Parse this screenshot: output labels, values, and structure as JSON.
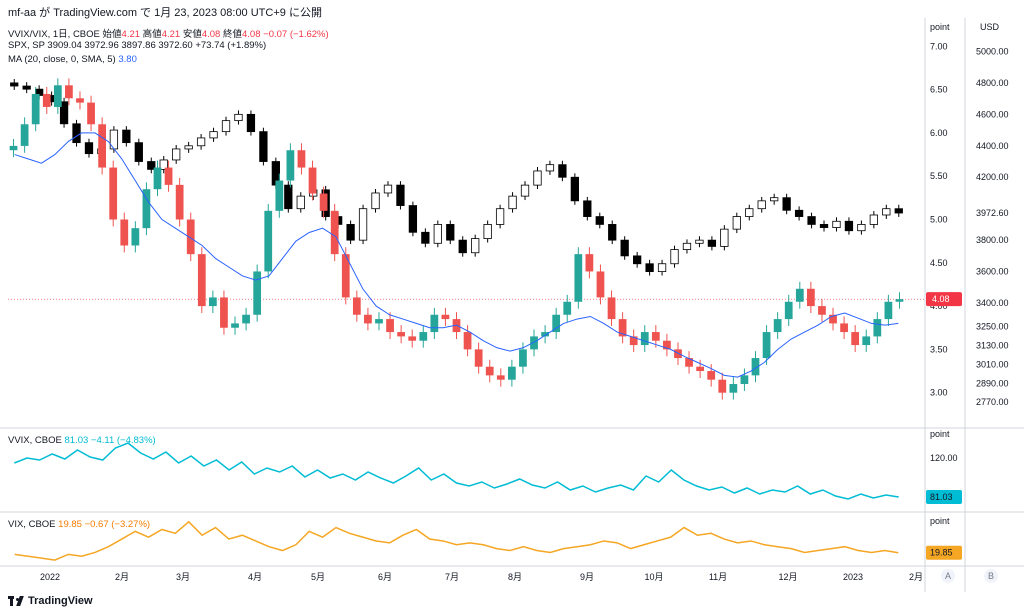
{
  "header": {
    "title": "mf-aa が TradingView.com で 1月 23, 2023 08:00 UTC+9 に公開"
  },
  "footer": {
    "brand": "TradingView"
  },
  "legend_main": {
    "vvix_prefix": "VVIX/VIX, 1日, CBOE",
    "vvix_open_label": "始値",
    "vvix_open": "4.21",
    "vvix_high_label": "高値",
    "vvix_high": "4.21",
    "vvix_low_label": "安値",
    "vvix_low": "4.08",
    "vvix_close_label": "終値",
    "vvix_close": "4.08",
    "vvix_change": "−0.07 (−1.62%)",
    "spx_line": "SPX, SP  3909.04  3972.96  3897.86  3972.60  +73.74 (+1.89%)",
    "ma_prefix": "MA (20, close, 0, SMA, 5)",
    "ma_value": "3.80"
  },
  "legend_vvix": {
    "prefix": "VVIX, CBOE",
    "value": "81.03",
    "change": "−4.11 (−4.83%)"
  },
  "legend_vix": {
    "prefix": "VIX, CBOE",
    "value": "19.85",
    "change": "−0.67 (−3.27%)"
  },
  "colors": {
    "up": "#26a69a",
    "down": "#ef5350",
    "ma": "#2962ff",
    "spx": "#000000",
    "vvix": "#00bcd4",
    "vix": "#f5a623",
    "badge_red": "#f23645"
  },
  "chart_data": [
    {
      "type": "candlestick",
      "title": "VVIX/VIX, 1日, CBOE",
      "axis_label": "point",
      "y_ticks": [
        "7.00",
        "6.50",
        "6.00",
        "5.50",
        "5.00",
        "4.50",
        "4.00",
        "3.50",
        "3.00"
      ],
      "ylim": [
        2.8,
        7.05
      ],
      "x_ticks": [
        "2022",
        "2月",
        "3月",
        "4月",
        "5月",
        "6月",
        "7月",
        "8月",
        "9月",
        "10月",
        "11月",
        "12月",
        "2023",
        "2月"
      ],
      "last_value": "4.08",
      "series": [
        {
          "name": "VVIX/VIX",
          "values": [
            5.85,
            6.1,
            6.45,
            6.3,
            6.55,
            6.4,
            6.35,
            6.1,
            5.6,
            5.0,
            4.7,
            4.9,
            5.35,
            5.6,
            5.4,
            5.0,
            4.6,
            4.0,
            4.1,
            3.75,
            3.8,
            3.9,
            4.4,
            5.1,
            5.45,
            5.8,
            5.6,
            5.3,
            5.1,
            4.6,
            4.1,
            3.9,
            3.8,
            3.85,
            3.7,
            3.65,
            3.6,
            3.7,
            3.9,
            3.85,
            3.7,
            3.5,
            3.3,
            3.2,
            3.15,
            3.3,
            3.5,
            3.65,
            3.7,
            3.9,
            4.05,
            4.6,
            4.4,
            4.1,
            3.85,
            3.65,
            3.55,
            3.7,
            3.6,
            3.5,
            3.4,
            3.3,
            3.25,
            3.15,
            3.0,
            3.1,
            3.2,
            3.4,
            3.7,
            3.85,
            4.05,
            4.2,
            4.0,
            3.9,
            3.8,
            3.7,
            3.55,
            3.65,
            3.85,
            4.05,
            4.08
          ]
        },
        {
          "name": "MA (20, close, 0, SMA, 5)",
          "values": [
            5.75,
            5.7,
            5.65,
            5.75,
            5.9,
            6.0,
            6.0,
            5.9,
            5.7,
            5.45,
            5.2,
            5.0,
            4.9,
            4.8,
            4.7,
            4.55,
            4.45,
            4.35,
            4.3,
            4.35,
            4.55,
            4.75,
            4.85,
            4.9,
            4.8,
            4.5,
            4.2,
            4.0,
            3.9,
            3.85,
            3.8,
            3.75,
            3.75,
            3.78,
            3.7,
            3.6,
            3.52,
            3.48,
            3.52,
            3.6,
            3.7,
            3.8,
            3.85,
            3.88,
            3.8,
            3.7,
            3.65,
            3.6,
            3.55,
            3.5,
            3.42,
            3.35,
            3.28,
            3.2,
            3.18,
            3.25,
            3.35,
            3.5,
            3.62,
            3.7,
            3.78,
            3.88,
            3.92,
            3.86,
            3.8,
            3.78,
            3.8
          ]
        }
      ]
    },
    {
      "type": "candlestick",
      "title": "SPX, SP",
      "axis_label": "USD",
      "y_ticks": [
        "5000.00",
        "4800.00",
        "4600.00",
        "4400.00",
        "4200.00",
        "3972.60",
        "3800.00",
        "3600.00",
        "3400.00",
        "3250.00",
        "3130.00",
        "3010.00",
        "2890.00",
        "2770.00"
      ],
      "ylim": [
        2720,
        5060
      ],
      "series": [
        {
          "name": "SPX",
          "values": [
            4780,
            4760,
            4720,
            4680,
            4540,
            4420,
            4350,
            4380,
            4500,
            4420,
            4300,
            4250,
            4310,
            4380,
            4400,
            4450,
            4490,
            4560,
            4600,
            4490,
            4300,
            4150,
            4000,
            4080,
            4120,
            3950,
            3900,
            3800,
            4000,
            4100,
            4150,
            4020,
            3850,
            3780,
            3900,
            3800,
            3720,
            3810,
            3900,
            4000,
            4080,
            4150,
            4240,
            4280,
            4200,
            4050,
            3950,
            3900,
            3800,
            3700,
            3650,
            3600,
            3650,
            3740,
            3780,
            3800,
            3760,
            3870,
            3950,
            4000,
            4050,
            4070,
            3990,
            3950,
            3900,
            3880,
            3920,
            3860,
            3900,
            3960,
            4000,
            3972.6
          ]
        }
      ]
    },
    {
      "type": "line",
      "title": "VVIX, CBOE",
      "axis_label": "point",
      "y_ticks": [
        "120.00"
      ],
      "last_value": "81.03",
      "series": [
        {
          "name": "VVIX",
          "values": [
            115,
            120,
            118,
            124,
            119,
            128,
            121,
            118,
            130,
            135,
            125,
            119,
            126,
            115,
            122,
            112,
            118,
            108,
            116,
            104,
            110,
            106,
            112,
            101,
            108,
            100,
            104,
            98,
            106,
            100,
            95,
            102,
            110,
            98,
            104,
            95,
            92,
            96,
            90,
            94,
            99,
            93,
            90,
            96,
            88,
            92,
            86,
            90,
            93,
            88,
            102,
            96,
            108,
            98,
            92,
            88,
            91,
            85,
            90,
            84,
            88,
            86,
            92,
            84,
            88,
            82,
            79,
            84,
            80,
            83,
            81.03
          ]
        }
      ]
    },
    {
      "type": "line",
      "title": "VIX, CBOE",
      "axis_label": "point",
      "last_value": "19.85",
      "series": [
        {
          "name": "VIX",
          "values": [
            19,
            18,
            17,
            16,
            19,
            18,
            20,
            23,
            27,
            31,
            28,
            32,
            30,
            36,
            29,
            33,
            27,
            29,
            26,
            23,
            21,
            24,
            31,
            28,
            33,
            30,
            28,
            26,
            25,
            29,
            32,
            27,
            26,
            24,
            25,
            24,
            22,
            21,
            23,
            21,
            20,
            22,
            23,
            24,
            26,
            25,
            22,
            24,
            26,
            28,
            33,
            29,
            30,
            27,
            25,
            26,
            24,
            23,
            22,
            20,
            21,
            22,
            23,
            21,
            20,
            21,
            19.85
          ]
        }
      ]
    }
  ]
}
